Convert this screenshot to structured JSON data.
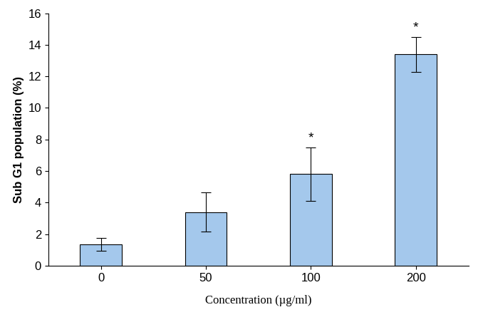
{
  "chart_data": {
    "type": "bar",
    "x_label": "Concentration (µg/ml)",
    "y_label": "Sub G1 population (%)",
    "categories": [
      "0",
      "50",
      "100",
      "200"
    ],
    "values": [
      1.35,
      3.4,
      5.8,
      13.4
    ],
    "errors": [
      0.4,
      1.25,
      1.7,
      1.1
    ],
    "annotations": [
      {
        "category": "100",
        "text": "*"
      },
      {
        "category": "200",
        "text": "*"
      }
    ],
    "color": "#a4c8ec",
    "ylim": [
      0,
      16
    ],
    "yticks": [
      0,
      2,
      4,
      6,
      8,
      10,
      12,
      14,
      16
    ],
    "grid": false
  }
}
